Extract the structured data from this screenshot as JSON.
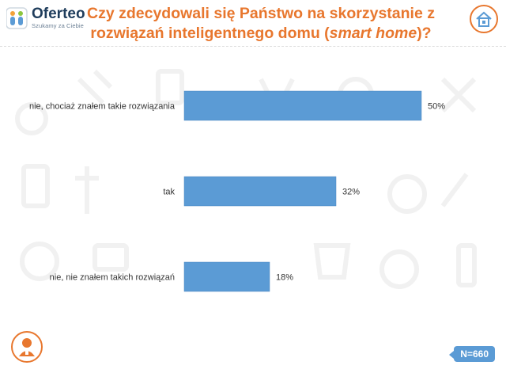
{
  "brand": {
    "name": "Oferteo",
    "tagline": "Szukamy za Ciebie"
  },
  "header": {
    "title_part1": "Czy zdecydowali się Państwo na skorzystanie z",
    "title_part2": "rozwiązań inteligentnego domu (",
    "title_italic": "smart home",
    "title_part3": ")?"
  },
  "footer": {
    "sample_size": "N=660"
  },
  "icons": {
    "logo": "oferteo-logo-icon",
    "top_right": "smart-home-icon",
    "bottom_left": "person-icon"
  },
  "colors": {
    "accent": "#e8772e",
    "bar": "#5b9bd5",
    "brand_dark": "#1f3d5c"
  },
  "chart_data": {
    "type": "bar",
    "orientation": "horizontal",
    "categories": [
      "nie, chociaż znałem takie rozwiązania",
      "tak",
      "nie, nie znałem takich rozwiązań"
    ],
    "values": [
      50,
      32,
      18
    ],
    "value_labels": [
      "50%",
      "32%",
      "18%"
    ],
    "unit": "%",
    "xlim": [
      0,
      50
    ],
    "grid": false
  }
}
